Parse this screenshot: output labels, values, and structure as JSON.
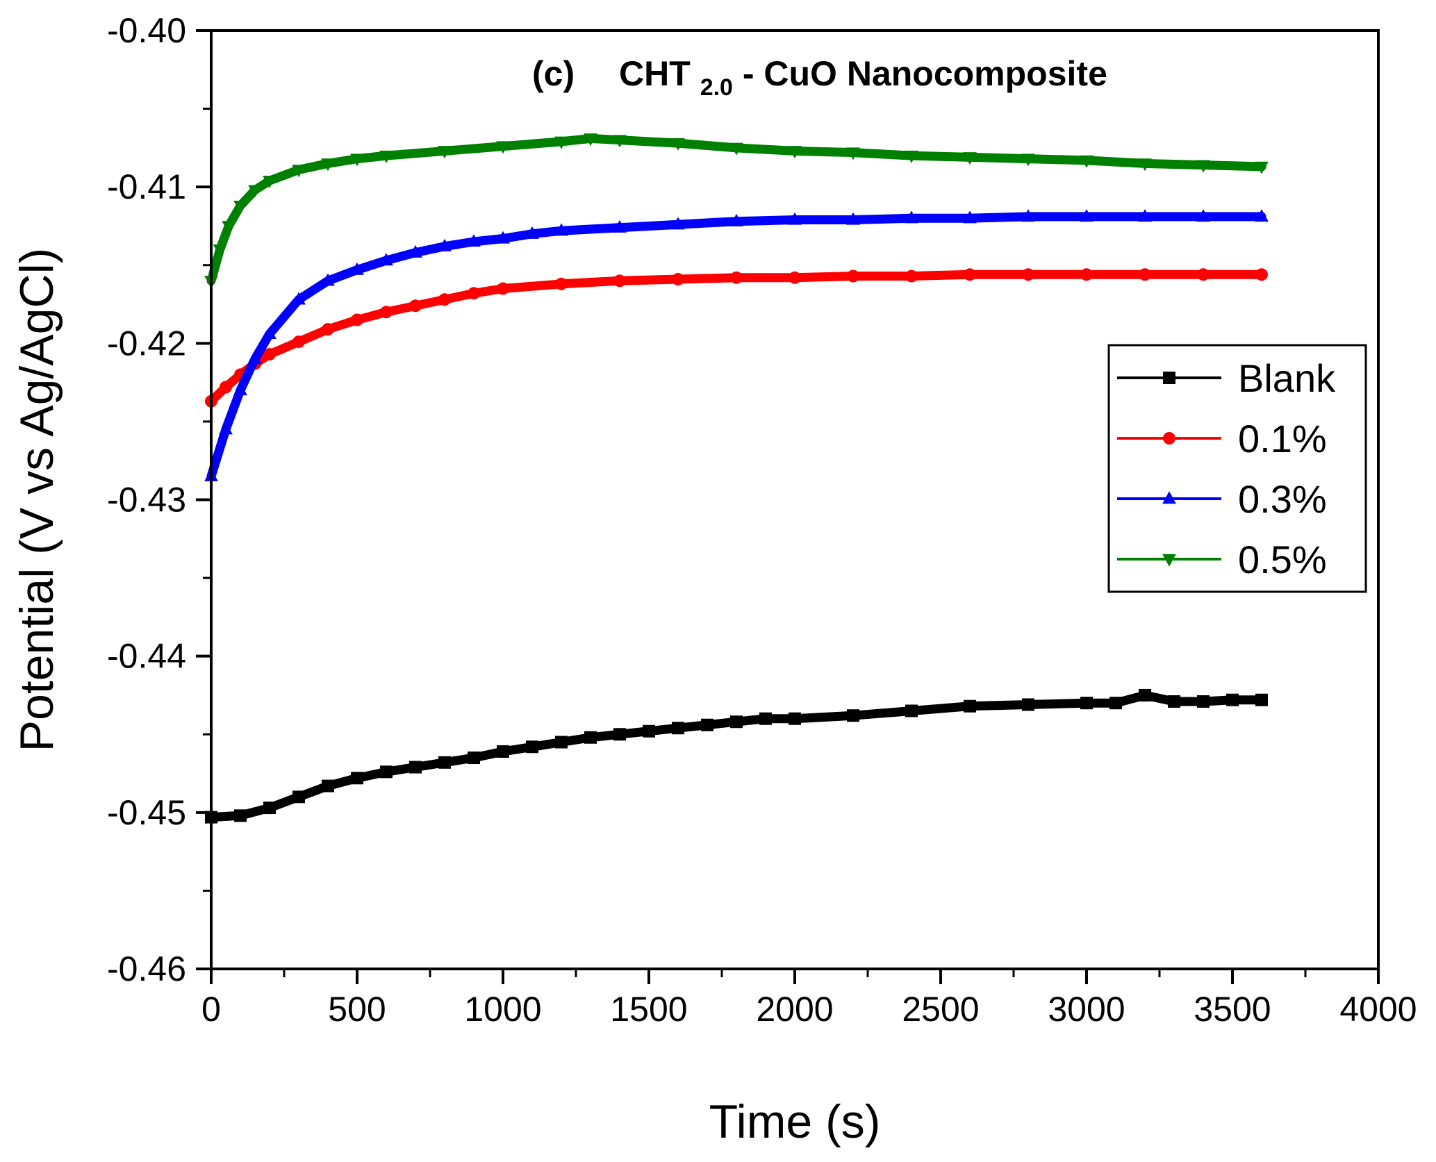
{
  "chart_data": {
    "type": "line",
    "title": {
      "panel": "(c)",
      "prefix": "CHT",
      "subscript": "2.0",
      "suffix": " - CuO Nanocomposite"
    },
    "xlabel": "Time (s)",
    "ylabel": "Potential (V vs Ag/AgCl)",
    "xlim": [
      0,
      4000
    ],
    "ylim": [
      -0.46,
      -0.4
    ],
    "x_ticks": [
      0,
      500,
      1000,
      1500,
      2000,
      2500,
      3000,
      3500,
      4000
    ],
    "x_tick_labels": [
      "0",
      "500",
      "1000",
      "1500",
      "2000",
      "2500",
      "3000",
      "3500",
      "4000"
    ],
    "y_ticks": [
      -0.46,
      -0.45,
      -0.44,
      -0.43,
      -0.42,
      -0.41,
      -0.4
    ],
    "y_tick_labels": [
      "-0.46",
      "-0.45",
      "-0.44",
      "-0.43",
      "-0.42",
      "-0.41",
      "-0.40"
    ],
    "grid": false,
    "legend_position": "right",
    "series": [
      {
        "name": "Blank",
        "color": "#000000",
        "marker": "square",
        "points": [
          [
            0,
            -0.4503
          ],
          [
            100,
            -0.4502
          ],
          [
            200,
            -0.4497
          ],
          [
            300,
            -0.449
          ],
          [
            400,
            -0.4483
          ],
          [
            500,
            -0.4478
          ],
          [
            600,
            -0.4474
          ],
          [
            700,
            -0.4471
          ],
          [
            800,
            -0.4468
          ],
          [
            900,
            -0.4465
          ],
          [
            1000,
            -0.4461
          ],
          [
            1100,
            -0.4458
          ],
          [
            1200,
            -0.4455
          ],
          [
            1300,
            -0.4452
          ],
          [
            1400,
            -0.445
          ],
          [
            1500,
            -0.4448
          ],
          [
            1600,
            -0.4446
          ],
          [
            1700,
            -0.4444
          ],
          [
            1800,
            -0.4442
          ],
          [
            1900,
            -0.444
          ],
          [
            2000,
            -0.444
          ],
          [
            2200,
            -0.4438
          ],
          [
            2400,
            -0.4435
          ],
          [
            2600,
            -0.4432
          ],
          [
            2800,
            -0.4431
          ],
          [
            3000,
            -0.443
          ],
          [
            3100,
            -0.443
          ],
          [
            3200,
            -0.4425
          ],
          [
            3300,
            -0.4429
          ],
          [
            3400,
            -0.4429
          ],
          [
            3500,
            -0.4428
          ],
          [
            3600,
            -0.4428
          ]
        ]
      },
      {
        "name": "0.1%",
        "color": "#ff0000",
        "marker": "circle",
        "points": [
          [
            0,
            -0.4237
          ],
          [
            50,
            -0.4228
          ],
          [
            100,
            -0.422
          ],
          [
            150,
            -0.4213
          ],
          [
            200,
            -0.4207
          ],
          [
            300,
            -0.4199
          ],
          [
            400,
            -0.4191
          ],
          [
            500,
            -0.4185
          ],
          [
            600,
            -0.418
          ],
          [
            700,
            -0.4176
          ],
          [
            800,
            -0.4172
          ],
          [
            900,
            -0.4168
          ],
          [
            1000,
            -0.4165
          ],
          [
            1200,
            -0.4162
          ],
          [
            1400,
            -0.416
          ],
          [
            1600,
            -0.4159
          ],
          [
            1800,
            -0.4158
          ],
          [
            2000,
            -0.4158
          ],
          [
            2200,
            -0.4157
          ],
          [
            2400,
            -0.4157
          ],
          [
            2600,
            -0.4156
          ],
          [
            2800,
            -0.4156
          ],
          [
            3000,
            -0.4156
          ],
          [
            3200,
            -0.4156
          ],
          [
            3400,
            -0.4156
          ],
          [
            3600,
            -0.4156
          ]
        ]
      },
      {
        "name": "0.3%",
        "color": "#0000ff",
        "marker": "triangle-up",
        "points": [
          [
            0,
            -0.4285
          ],
          [
            50,
            -0.4255
          ],
          [
            100,
            -0.423
          ],
          [
            150,
            -0.421
          ],
          [
            200,
            -0.4194
          ],
          [
            300,
            -0.4172
          ],
          [
            400,
            -0.416
          ],
          [
            500,
            -0.4153
          ],
          [
            600,
            -0.4147
          ],
          [
            700,
            -0.4142
          ],
          [
            800,
            -0.4138
          ],
          [
            900,
            -0.4135
          ],
          [
            1000,
            -0.4133
          ],
          [
            1100,
            -0.413
          ],
          [
            1200,
            -0.4128
          ],
          [
            1400,
            -0.4126
          ],
          [
            1600,
            -0.4124
          ],
          [
            1800,
            -0.4122
          ],
          [
            2000,
            -0.4121
          ],
          [
            2200,
            -0.4121
          ],
          [
            2400,
            -0.412
          ],
          [
            2600,
            -0.412
          ],
          [
            2800,
            -0.4119
          ],
          [
            3000,
            -0.4119
          ],
          [
            3200,
            -0.4119
          ],
          [
            3400,
            -0.4119
          ],
          [
            3600,
            -0.4119
          ]
        ]
      },
      {
        "name": "0.5%",
        "color": "#008000",
        "marker": "triangle-down",
        "points": [
          [
            0,
            -0.416
          ],
          [
            30,
            -0.414
          ],
          [
            60,
            -0.4125
          ],
          [
            100,
            -0.4112
          ],
          [
            150,
            -0.4102
          ],
          [
            200,
            -0.4096
          ],
          [
            300,
            -0.4089
          ],
          [
            400,
            -0.4085
          ],
          [
            500,
            -0.4082
          ],
          [
            600,
            -0.408
          ],
          [
            800,
            -0.4077
          ],
          [
            1000,
            -0.4074
          ],
          [
            1200,
            -0.4071
          ],
          [
            1300,
            -0.4069
          ],
          [
            1400,
            -0.407
          ],
          [
            1600,
            -0.4072
          ],
          [
            1800,
            -0.4075
          ],
          [
            2000,
            -0.4077
          ],
          [
            2200,
            -0.4078
          ],
          [
            2400,
            -0.408
          ],
          [
            2600,
            -0.4081
          ],
          [
            2800,
            -0.4082
          ],
          [
            3000,
            -0.4083
          ],
          [
            3200,
            -0.4085
          ],
          [
            3400,
            -0.4086
          ],
          [
            3600,
            -0.4087
          ]
        ]
      }
    ]
  }
}
